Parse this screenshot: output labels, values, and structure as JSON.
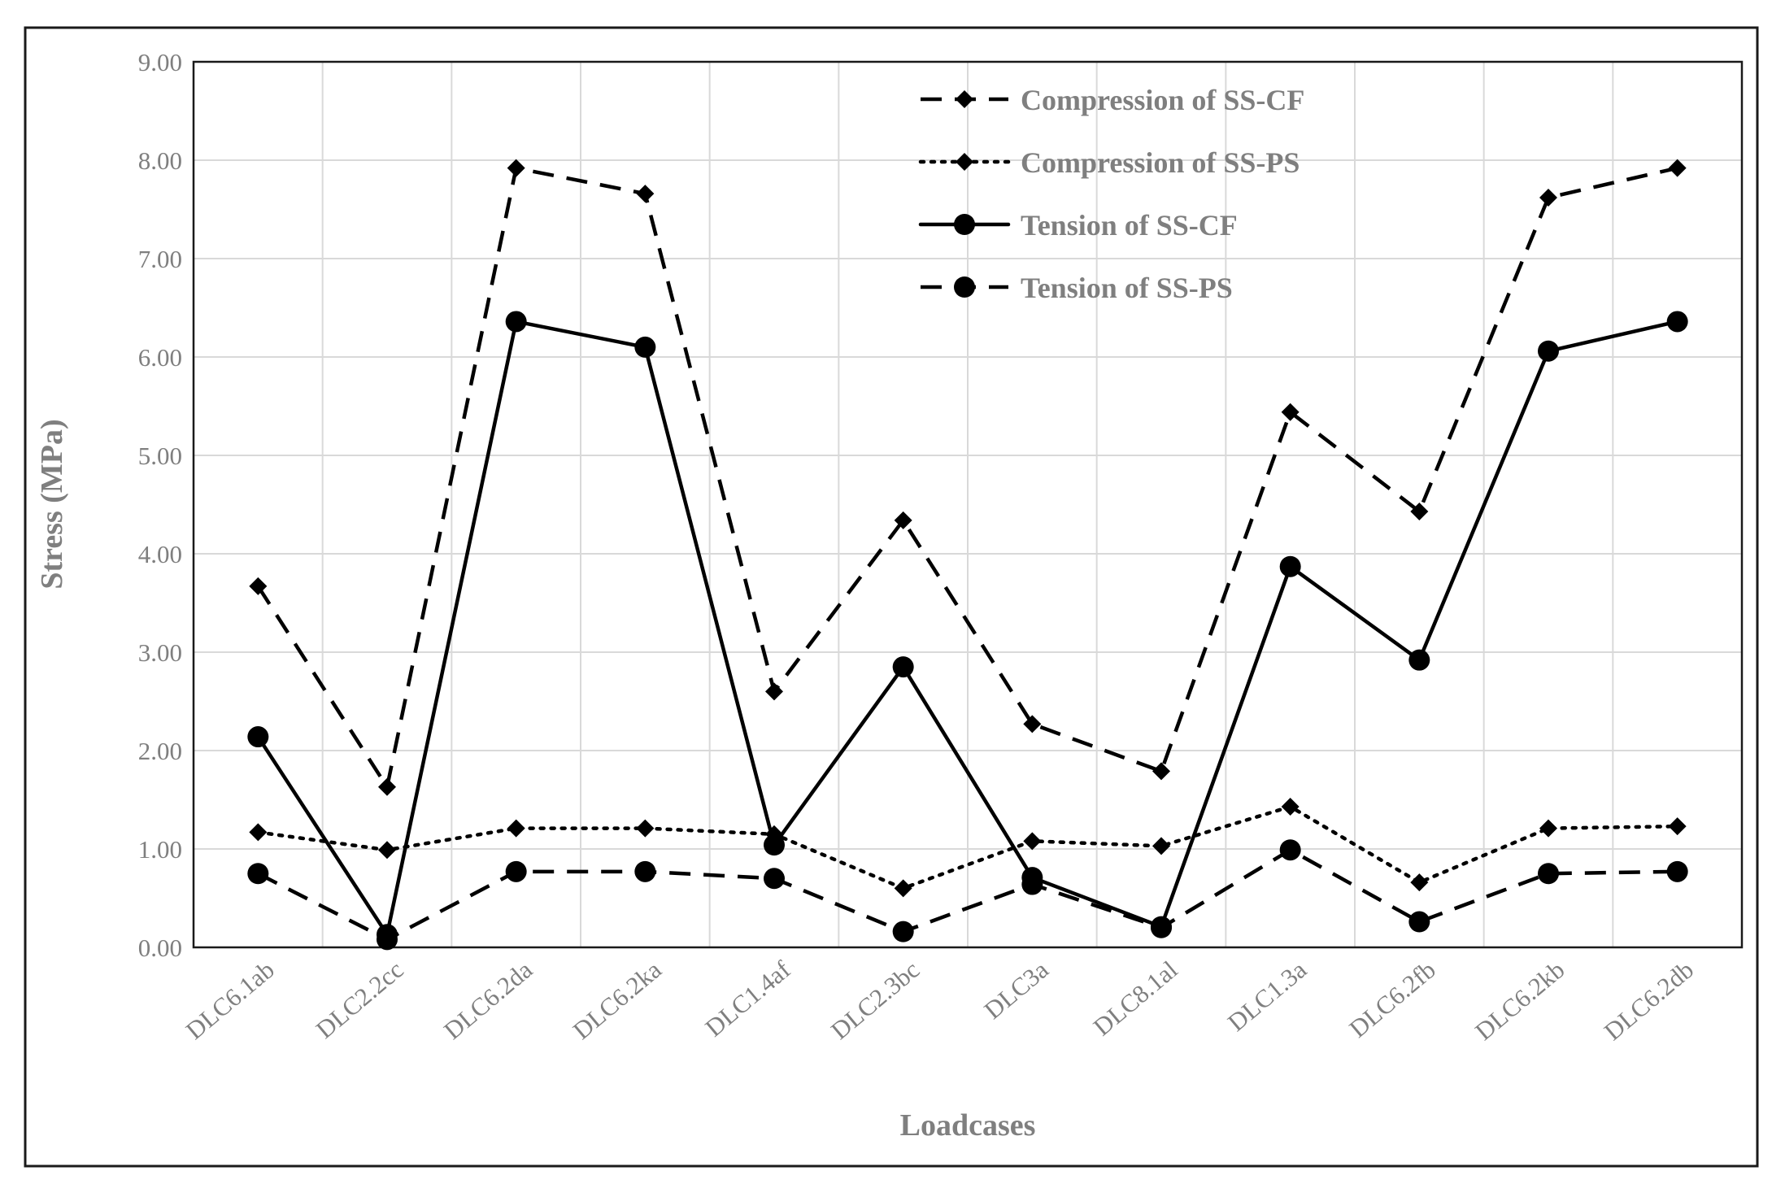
{
  "chart_data": {
    "type": "line",
    "title": "",
    "xlabel": "Loadcases",
    "ylabel": "Stress (MPa)",
    "ylim": [
      0,
      9
    ],
    "ytick_step": 1,
    "ytick_labels": [
      "0.00",
      "1.00",
      "2.00",
      "3.00",
      "4.00",
      "5.00",
      "6.00",
      "7.00",
      "8.00",
      "9.00"
    ],
    "grid": true,
    "legend_position": "top-right",
    "categories": [
      "DLC6.1ab",
      "DLC2.2cc",
      "DLC6.2da",
      "DLC6.2ka",
      "DLC1.4af",
      "DLC2.3bc",
      "DLC3a",
      "DLC8.1al",
      "DLC1.3a",
      "DLC6.2fb",
      "DLC6.2kb",
      "DLC6.2db"
    ],
    "series": [
      {
        "name": "Compression of SS-CF",
        "line": "dashed",
        "marker": "diamond",
        "values": [
          3.67,
          1.63,
          7.92,
          7.66,
          2.6,
          4.34,
          2.27,
          1.79,
          5.44,
          4.43,
          7.62,
          7.92
        ]
      },
      {
        "name": "Compression of SS-PS",
        "line": "dotted",
        "marker": "diamond",
        "values": [
          1.17,
          0.99,
          1.21,
          1.21,
          1.15,
          0.6,
          1.08,
          1.03,
          1.43,
          0.66,
          1.21,
          1.23
        ]
      },
      {
        "name": "Tension of SS-CF",
        "line": "solid",
        "marker": "circle",
        "values": [
          2.14,
          0.13,
          6.36,
          6.1,
          1.04,
          2.85,
          0.71,
          0.21,
          3.87,
          2.92,
          6.06,
          6.36
        ]
      },
      {
        "name": "Tension of SS-PS",
        "line": "dashed",
        "marker": "circle",
        "values": [
          0.75,
          0.08,
          0.77,
          0.77,
          0.7,
          0.16,
          0.64,
          0.2,
          0.99,
          0.26,
          0.75,
          0.77
        ]
      }
    ]
  }
}
